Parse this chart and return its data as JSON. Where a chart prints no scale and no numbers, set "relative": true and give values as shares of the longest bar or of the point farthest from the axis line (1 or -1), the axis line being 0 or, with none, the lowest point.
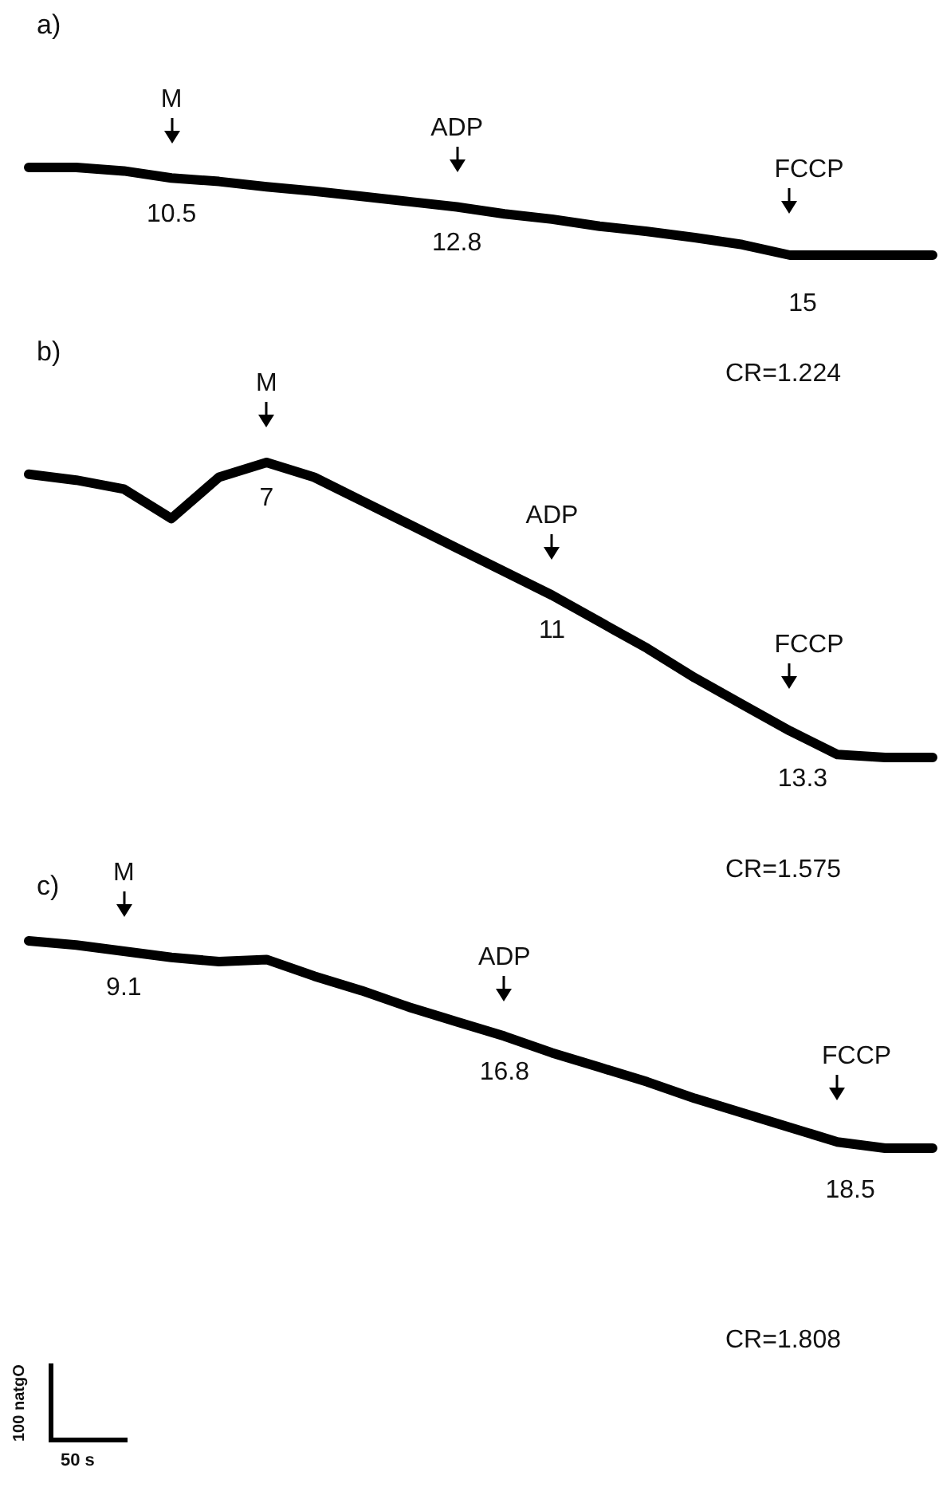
{
  "chart_data": [
    {
      "type": "line",
      "title": "a)",
      "relative": true,
      "categories": [
        null,
        null,
        null,
        null,
        null,
        null,
        null,
        null,
        null,
        null,
        null,
        null,
        null,
        null,
        null,
        null,
        null,
        null,
        null,
        null
      ],
      "series": [
        {
          "color": "#000000",
          "values": [
            1.0,
            1.0,
            0.96,
            0.88,
            0.84,
            0.78,
            0.73,
            0.67,
            0.61,
            0.55,
            0.47,
            0.41,
            0.33,
            0.27,
            0.2,
            0.12,
            0,
            0,
            0,
            0
          ]
        }
      ],
      "annotations": [
        "M",
        "10.5",
        "ADP",
        "12.8",
        "FCCP",
        "15",
        "CR=1.224"
      ]
    },
    {
      "type": "line",
      "title": "b)",
      "relative": true,
      "categories": [
        null,
        null,
        null,
        null,
        null,
        null,
        null,
        null,
        null,
        null,
        null,
        null,
        null,
        null,
        null,
        null,
        null,
        null,
        null,
        null
      ],
      "series": [
        {
          "color": "#000000",
          "values": [
            0.96,
            0.94,
            0.91,
            0.81,
            0.95,
            1.0,
            0.95,
            0.87,
            0.79,
            0.71,
            0.63,
            0.55,
            0.46,
            0.37,
            0.27,
            0.18,
            0.09,
            0.01,
            0,
            0
          ]
        }
      ],
      "annotations": [
        "M",
        "7",
        "ADP",
        "11",
        "FCCP",
        "13.3",
        "CR=1.575"
      ]
    },
    {
      "type": "line",
      "title": "c)",
      "relative": true,
      "categories": [
        null,
        null,
        null,
        null,
        null,
        null,
        null,
        null,
        null,
        null,
        null,
        null,
        null,
        null,
        null,
        null,
        null,
        null,
        null,
        null
      ],
      "series": [
        {
          "color": "#000000",
          "values": [
            1.0,
            0.98,
            0.95,
            0.92,
            0.9,
            0.91,
            0.83,
            0.76,
            0.68,
            0.61,
            0.54,
            0.46,
            0.39,
            0.32,
            0.24,
            0.17,
            0.1,
            0.03,
            0,
            0
          ]
        }
      ],
      "annotations": [
        "M",
        "9.1",
        "ADP",
        "16.8",
        "FCCP",
        "18.5",
        "CR=1.808",
        "100 natgO",
        "50 s"
      ]
    }
  ]
}
